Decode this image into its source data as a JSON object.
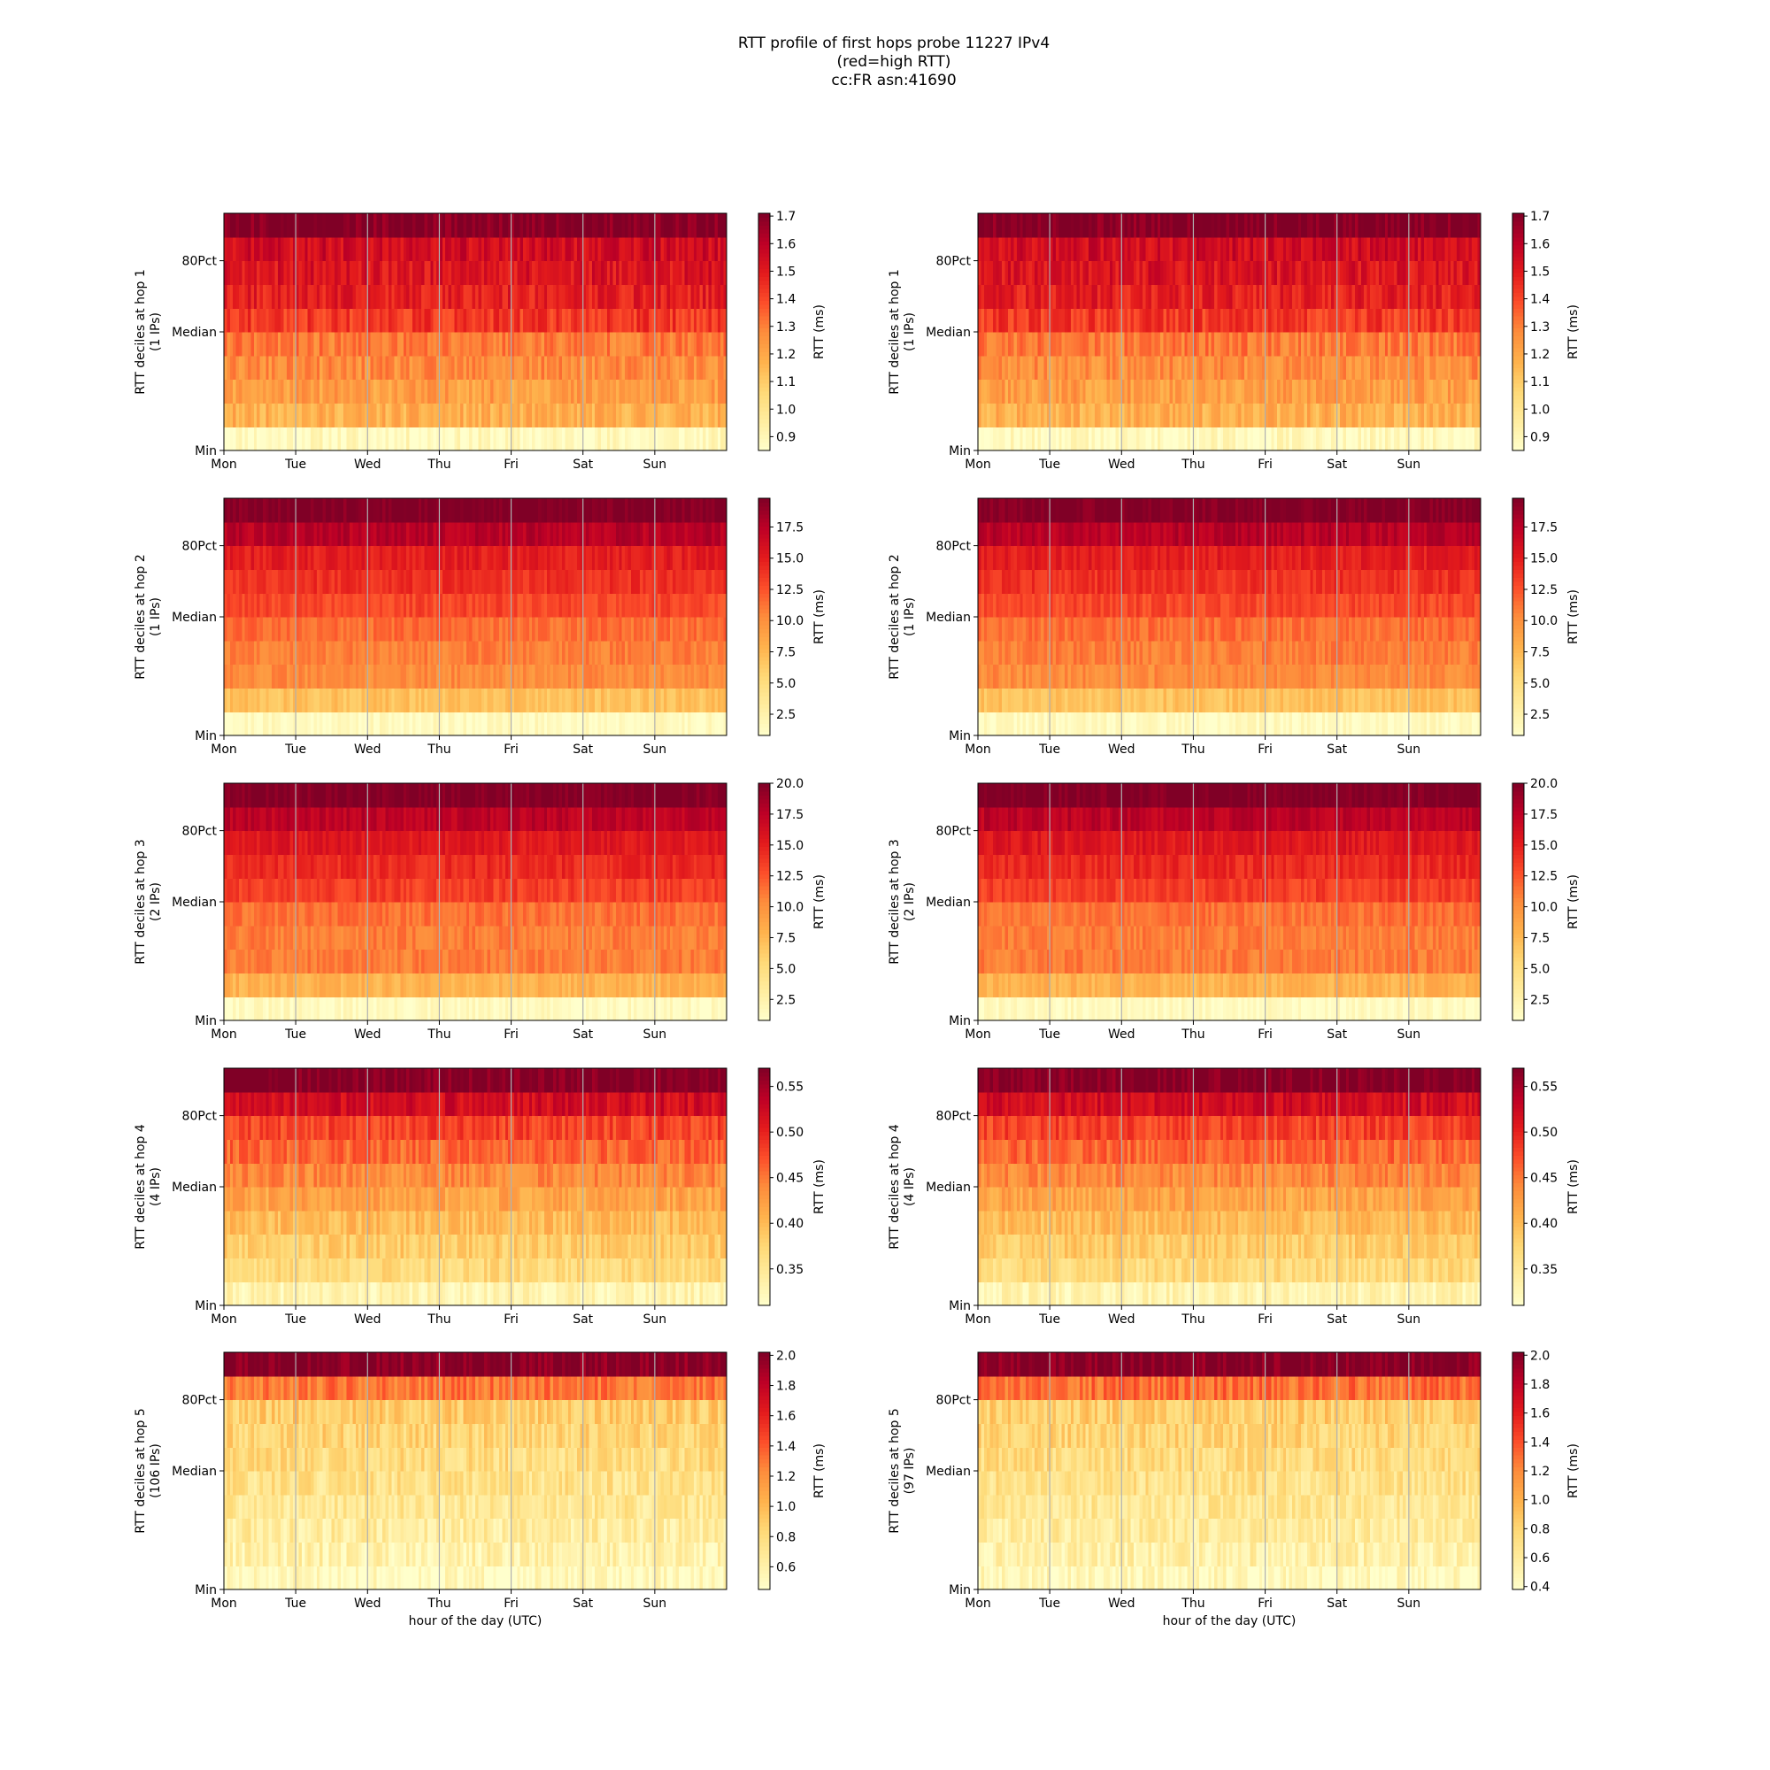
{
  "figure": {
    "title_lines": [
      "RTT profile of first hops probe 11227 IPv4",
      "(red=high RTT)",
      "cc:FR asn:41690"
    ],
    "xlabel": "hour of the day (UTC)",
    "colormap": "YlOrRd",
    "cmap_stops": [
      "#ffffcc",
      "#ffeda0",
      "#fed976",
      "#feb24c",
      "#fd8d3c",
      "#fc4e2a",
      "#e31a1c",
      "#bd0026",
      "#800026"
    ],
    "grid_color": "#b0b0b0"
  },
  "chart_data": [
    {
      "type": "heatmap",
      "column": "left",
      "hop": 1,
      "ylabel_lines": [
        "RTT deciles at hop 1",
        "(1 IPs)"
      ],
      "cbar_label": "RTT (ms)",
      "cbar_range": [
        0.85,
        1.71
      ],
      "cbar_ticks": [
        "0.9",
        "1.0",
        "1.1",
        "1.2",
        "1.3",
        "1.4",
        "1.5",
        "1.6",
        "1.7"
      ],
      "yticks": [
        "Min",
        "Median",
        "80Pct"
      ],
      "xticks": [
        "Mon",
        "Tue",
        "Wed",
        "Thu",
        "Fri",
        "Sat",
        "Sun"
      ],
      "grid": true,
      "decile_levels": [
        0.88,
        1.18,
        1.23,
        1.27,
        1.31,
        1.43,
        1.49,
        1.52,
        1.55,
        1.71
      ],
      "variation": 0.07,
      "noise_seed": 11
    },
    {
      "type": "heatmap",
      "column": "right",
      "hop": 1,
      "ylabel_lines": [
        "RTT deciles at hop 1",
        "(1 IPs)"
      ],
      "cbar_label": "RTT (ms)",
      "cbar_range": [
        0.85,
        1.71
      ],
      "cbar_ticks": [
        "0.9",
        "1.0",
        "1.1",
        "1.2",
        "1.3",
        "1.4",
        "1.5",
        "1.6",
        "1.7"
      ],
      "yticks": [
        "Min",
        "Median",
        "80Pct"
      ],
      "xticks": [
        "Mon",
        "Tue",
        "Wed",
        "Thu",
        "Fri",
        "Sat",
        "Sun"
      ],
      "grid": true,
      "decile_levels": [
        0.88,
        1.18,
        1.23,
        1.27,
        1.31,
        1.43,
        1.49,
        1.52,
        1.55,
        1.71
      ],
      "variation": 0.07,
      "noise_seed": 12
    },
    {
      "type": "heatmap",
      "column": "left",
      "hop": 2,
      "ylabel_lines": [
        "RTT deciles at hop 2",
        "(1 IPs)"
      ],
      "cbar_label": "RTT (ms)",
      "cbar_range": [
        0.8,
        19.8
      ],
      "cbar_ticks": [
        "2.5",
        "5.0",
        "7.5",
        "10.0",
        "12.5",
        "15.0",
        "17.5"
      ],
      "yticks": [
        "Min",
        "Median",
        "80Pct"
      ],
      "xticks": [
        "Mon",
        "Tue",
        "Wed",
        "Thu",
        "Fri",
        "Sat",
        "Sun"
      ],
      "grid": true,
      "decile_levels": [
        1.5,
        7.0,
        10.2,
        10.8,
        11.5,
        13.0,
        14.0,
        15.0,
        17.5,
        19.8
      ],
      "variation": 1.0,
      "noise_seed": 21
    },
    {
      "type": "heatmap",
      "column": "right",
      "hop": 2,
      "ylabel_lines": [
        "RTT deciles at hop 2",
        "(1 IPs)"
      ],
      "cbar_label": "RTT (ms)",
      "cbar_range": [
        0.8,
        19.8
      ],
      "cbar_ticks": [
        "2.5",
        "5.0",
        "7.5",
        "10.0",
        "12.5",
        "15.0",
        "17.5"
      ],
      "yticks": [
        "Min",
        "Median",
        "80Pct"
      ],
      "xticks": [
        "Mon",
        "Tue",
        "Wed",
        "Thu",
        "Fri",
        "Sat",
        "Sun"
      ],
      "grid": true,
      "decile_levels": [
        1.5,
        7.0,
        10.2,
        10.8,
        11.5,
        13.0,
        14.0,
        15.0,
        17.5,
        19.8
      ],
      "variation": 1.0,
      "noise_seed": 22
    },
    {
      "type": "heatmap",
      "column": "left",
      "hop": 3,
      "ylabel_lines": [
        "RTT deciles at hop 3",
        "(2 IPs)"
      ],
      "cbar_label": "RTT (ms)",
      "cbar_range": [
        0.8,
        20.0
      ],
      "cbar_ticks": [
        "2.5",
        "5.0",
        "7.5",
        "10.0",
        "12.5",
        "15.0",
        "17.5",
        "20.0"
      ],
      "yticks": [
        "Min",
        "Median",
        "80Pct"
      ],
      "xticks": [
        "Mon",
        "Tue",
        "Wed",
        "Thu",
        "Fri",
        "Sat",
        "Sun"
      ],
      "grid": true,
      "decile_levels": [
        1.5,
        8.0,
        11.0,
        11.0,
        11.5,
        13.5,
        14.5,
        15.5,
        17.5,
        20.0
      ],
      "variation": 1.0,
      "noise_seed": 31
    },
    {
      "type": "heatmap",
      "column": "right",
      "hop": 3,
      "ylabel_lines": [
        "RTT deciles at hop 3",
        "(2 IPs)"
      ],
      "cbar_label": "RTT (ms)",
      "cbar_range": [
        0.8,
        20.0
      ],
      "cbar_ticks": [
        "2.5",
        "5.0",
        "7.5",
        "10.0",
        "12.5",
        "15.0",
        "17.5",
        "20.0"
      ],
      "yticks": [
        "Min",
        "Median",
        "80Pct"
      ],
      "xticks": [
        "Mon",
        "Tue",
        "Wed",
        "Thu",
        "Fri",
        "Sat",
        "Sun"
      ],
      "grid": true,
      "decile_levels": [
        1.5,
        8.0,
        11.0,
        11.0,
        11.5,
        13.5,
        14.5,
        15.5,
        17.5,
        20.0
      ],
      "variation": 1.0,
      "noise_seed": 32
    },
    {
      "type": "heatmap",
      "column": "left",
      "hop": 4,
      "ylabel_lines": [
        "RTT deciles at hop 4",
        "(4 IPs)"
      ],
      "cbar_label": "RTT (ms)",
      "cbar_range": [
        0.31,
        0.57
      ],
      "cbar_ticks": [
        "0.35",
        "0.40",
        "0.45",
        "0.50",
        "0.55"
      ],
      "yticks": [
        "Min",
        "Median",
        "80Pct"
      ],
      "xticks": [
        "Mon",
        "Tue",
        "Wed",
        "Thu",
        "Fri",
        "Sat",
        "Sun"
      ],
      "grid": true,
      "decile_levels": [
        0.33,
        0.37,
        0.385,
        0.4,
        0.42,
        0.44,
        0.46,
        0.48,
        0.52,
        0.57
      ],
      "variation": 0.02,
      "noise_seed": 41
    },
    {
      "type": "heatmap",
      "column": "right",
      "hop": 4,
      "ylabel_lines": [
        "RTT deciles at hop 4",
        "(4 IPs)"
      ],
      "cbar_label": "RTT (ms)",
      "cbar_range": [
        0.31,
        0.57
      ],
      "cbar_ticks": [
        "0.35",
        "0.40",
        "0.45",
        "0.50",
        "0.55"
      ],
      "yticks": [
        "Min",
        "Median",
        "80Pct"
      ],
      "xticks": [
        "Mon",
        "Tue",
        "Wed",
        "Thu",
        "Fri",
        "Sat",
        "Sun"
      ],
      "grid": true,
      "decile_levels": [
        0.33,
        0.37,
        0.385,
        0.4,
        0.42,
        0.44,
        0.46,
        0.48,
        0.52,
        0.57
      ],
      "variation": 0.02,
      "noise_seed": 42
    },
    {
      "type": "heatmap",
      "column": "left",
      "hop": 5,
      "ylabel_lines": [
        "RTT deciles at hop 5",
        "(106 IPs)"
      ],
      "cbar_label": "RTT (ms)",
      "cbar_range": [
        0.45,
        2.02
      ],
      "cbar_ticks": [
        "0.6",
        "0.8",
        "1.0",
        "1.2",
        "1.4",
        "1.6",
        "1.8",
        "2.0"
      ],
      "yticks": [
        "Min",
        "Median",
        "80Pct"
      ],
      "xticks": [
        "Mon",
        "Tue",
        "Wed",
        "Thu",
        "Fri",
        "Sat",
        "Sun"
      ],
      "grid": true,
      "decile_levels": [
        0.5,
        0.6,
        0.65,
        0.7,
        0.75,
        0.8,
        0.85,
        0.9,
        1.3,
        2.02
      ],
      "variation": 0.15,
      "noise_seed": 51
    },
    {
      "type": "heatmap",
      "column": "right",
      "hop": 5,
      "ylabel_lines": [
        "RTT deciles at hop 5",
        "(97 IPs)"
      ],
      "cbar_label": "RTT (ms)",
      "cbar_range": [
        0.38,
        2.02
      ],
      "cbar_ticks": [
        "0.4",
        "0.6",
        "0.8",
        "1.0",
        "1.2",
        "1.4",
        "1.6",
        "1.8",
        "2.0"
      ],
      "yticks": [
        "Min",
        "Median",
        "80Pct"
      ],
      "xticks": [
        "Mon",
        "Tue",
        "Wed",
        "Thu",
        "Fri",
        "Sat",
        "Sun"
      ],
      "grid": true,
      "decile_levels": [
        0.45,
        0.55,
        0.6,
        0.65,
        0.7,
        0.75,
        0.8,
        0.85,
        1.3,
        2.02
      ],
      "variation": 0.15,
      "noise_seed": 52
    }
  ]
}
